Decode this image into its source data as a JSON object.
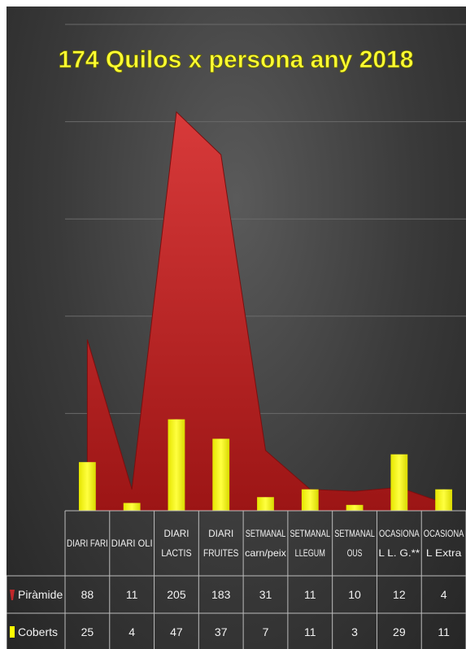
{
  "chart_data": {
    "type": "area",
    "title": "174 Quilos  x persona any 2018",
    "categories": [
      [
        "DIARI FARI"
      ],
      [
        "DIARI OLI"
      ],
      [
        "DIARI",
        "LACTIS"
      ],
      [
        "DIARI",
        "FRUITES"
      ],
      [
        "SETMANAL",
        "carn/peix"
      ],
      [
        "SETMANAL",
        "LLEGUM"
      ],
      [
        "SETMANAL",
        "OUS"
      ],
      [
        "OCASIONA",
        "L L. G.**"
      ],
      [
        "OCASIONA",
        "L Extra"
      ]
    ],
    "series": [
      {
        "name": "Piràmide",
        "type": "area",
        "color": "#c0282a",
        "values": [
          88,
          11,
          205,
          183,
          31,
          11,
          10,
          12,
          4
        ]
      },
      {
        "name": "Coberts",
        "type": "bar",
        "color": "#ffff00",
        "values": [
          25,
          4,
          47,
          37,
          7,
          11,
          3,
          29,
          11
        ]
      }
    ],
    "ylim": [
      0,
      250
    ],
    "grid": true,
    "legend": "data-table"
  }
}
